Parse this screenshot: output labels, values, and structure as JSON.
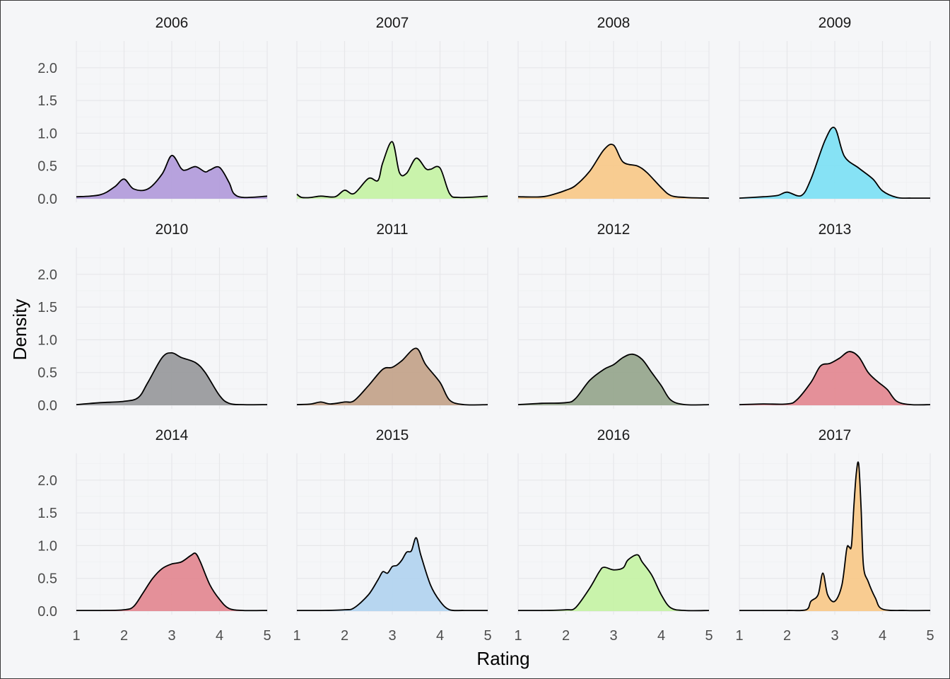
{
  "chart_data": {
    "type": "area",
    "subtype": "density",
    "layout": "facet-grid 3 rows x 4 columns",
    "xlabel": "Rating",
    "ylabel": "Density",
    "xlim": [
      1,
      5
    ],
    "ylim": [
      0,
      2.3
    ],
    "x_ticks": [
      "1",
      "2",
      "3",
      "4",
      "5"
    ],
    "y_ticks": [
      "0.0",
      "0.5",
      "1.0",
      "1.5",
      "2.0"
    ],
    "grid": true,
    "legend": "none",
    "outline_color": "#000000",
    "panels": [
      {
        "title": "2006",
        "color": "#b39ddb",
        "x": [
          1,
          1.5,
          1.8,
          2,
          2.2,
          2.5,
          2.8,
          3,
          3.2,
          3.3,
          3.5,
          3.7,
          3.8,
          4,
          4.2,
          4.3,
          4.5,
          5
        ],
        "y": [
          0.03,
          0.06,
          0.18,
          0.3,
          0.15,
          0.15,
          0.38,
          0.66,
          0.46,
          0.44,
          0.49,
          0.41,
          0.44,
          0.48,
          0.25,
          0.08,
          0.02,
          0.04
        ]
      },
      {
        "title": "2007",
        "color": "#c6f2a6",
        "x": [
          1,
          1.1,
          1.3,
          1.5,
          1.8,
          2,
          2.2,
          2.5,
          2.7,
          2.8,
          3,
          3.15,
          3.3,
          3.5,
          3.7,
          3.8,
          4,
          4.2,
          4.4,
          5
        ],
        "y": [
          0.07,
          0.02,
          0.02,
          0.04,
          0.03,
          0.13,
          0.08,
          0.31,
          0.28,
          0.55,
          0.87,
          0.4,
          0.39,
          0.62,
          0.46,
          0.45,
          0.47,
          0.08,
          0.02,
          0.04
        ]
      },
      {
        "title": "2008",
        "color": "#f8c98b",
        "x": [
          1,
          1.5,
          1.8,
          2,
          2.2,
          2.5,
          2.8,
          3,
          3.2,
          3.5,
          3.7,
          4,
          4.2,
          4.5,
          5
        ],
        "y": [
          0.03,
          0.03,
          0.08,
          0.13,
          0.2,
          0.42,
          0.75,
          0.82,
          0.56,
          0.5,
          0.4,
          0.17,
          0.05,
          0.02,
          0.01
        ]
      },
      {
        "title": "2009",
        "color": "#7fe0f4",
        "x": [
          1,
          1.5,
          1.8,
          2,
          2.3,
          2.5,
          2.8,
          3,
          3.2,
          3.5,
          3.8,
          4,
          4.3,
          4.6,
          5
        ],
        "y": [
          0.01,
          0.03,
          0.05,
          0.1,
          0.05,
          0.3,
          0.9,
          1.08,
          0.65,
          0.47,
          0.3,
          0.12,
          0.02,
          0.01,
          0.01
        ]
      },
      {
        "title": "2010",
        "color": "#9a9b9e",
        "x": [
          1,
          1.5,
          2,
          2.3,
          2.5,
          2.8,
          3,
          3.2,
          3.5,
          3.7,
          4,
          4.2,
          4.5,
          5
        ],
        "y": [
          0.01,
          0.04,
          0.06,
          0.12,
          0.35,
          0.73,
          0.8,
          0.73,
          0.65,
          0.5,
          0.15,
          0.03,
          0.01,
          0.01
        ]
      },
      {
        "title": "2011",
        "color": "#c4a48c",
        "x": [
          1,
          1.3,
          1.5,
          1.7,
          2,
          2.2,
          2.5,
          2.8,
          3,
          3.2,
          3.5,
          3.7,
          4,
          4.2,
          4.5,
          5
        ],
        "y": [
          0.01,
          0.02,
          0.05,
          0.02,
          0.05,
          0.07,
          0.3,
          0.55,
          0.58,
          0.68,
          0.87,
          0.62,
          0.35,
          0.08,
          0.01,
          0.01
        ]
      },
      {
        "title": "2012",
        "color": "#98a88f",
        "x": [
          1,
          1.5,
          2,
          2.2,
          2.5,
          2.8,
          3,
          3.2,
          3.4,
          3.6,
          3.8,
          4,
          4.2,
          4.5,
          5
        ],
        "y": [
          0.01,
          0.03,
          0.04,
          0.1,
          0.38,
          0.55,
          0.62,
          0.73,
          0.78,
          0.7,
          0.5,
          0.3,
          0.08,
          0.01,
          0.01
        ]
      },
      {
        "title": "2013",
        "color": "#e38a94",
        "x": [
          1,
          1.5,
          2,
          2.2,
          2.5,
          2.7,
          2.9,
          3.1,
          3.3,
          3.5,
          3.7,
          3.9,
          4.1,
          4.3,
          4.6,
          5
        ],
        "y": [
          0.01,
          0.02,
          0.02,
          0.08,
          0.35,
          0.6,
          0.64,
          0.72,
          0.82,
          0.74,
          0.5,
          0.36,
          0.24,
          0.06,
          0.01,
          0.01
        ]
      },
      {
        "title": "2014",
        "color": "#e38a94",
        "x": [
          1,
          1.5,
          2,
          2.2,
          2.4,
          2.6,
          2.8,
          3,
          3.2,
          3.4,
          3.5,
          3.6,
          3.8,
          4,
          4.2,
          4.5,
          5
        ],
        "y": [
          0.01,
          0.01,
          0.02,
          0.07,
          0.28,
          0.5,
          0.65,
          0.72,
          0.75,
          0.85,
          0.88,
          0.75,
          0.4,
          0.18,
          0.04,
          0.01,
          0.01
        ]
      },
      {
        "title": "2015",
        "color": "#b3d4ef",
        "x": [
          1,
          1.5,
          2,
          2.2,
          2.5,
          2.7,
          2.8,
          2.9,
          3,
          3.1,
          3.2,
          3.3,
          3.4,
          3.5,
          3.6,
          3.8,
          4,
          4.2,
          4.5,
          5
        ],
        "y": [
          0.01,
          0.01,
          0.02,
          0.05,
          0.25,
          0.48,
          0.6,
          0.58,
          0.68,
          0.7,
          0.78,
          0.9,
          0.92,
          1.12,
          0.85,
          0.4,
          0.15,
          0.02,
          0.01,
          0.01
        ]
      },
      {
        "title": "2016",
        "color": "#c6f2a6",
        "x": [
          1,
          1.5,
          2,
          2.2,
          2.5,
          2.7,
          2.8,
          3,
          3.2,
          3.3,
          3.5,
          3.6,
          3.8,
          4,
          4.2,
          4.5,
          5
        ],
        "y": [
          0.01,
          0.01,
          0.02,
          0.05,
          0.35,
          0.6,
          0.67,
          0.63,
          0.66,
          0.78,
          0.86,
          0.75,
          0.55,
          0.25,
          0.05,
          0.01,
          0.01
        ]
      },
      {
        "title": "2017",
        "color": "#f8c98b",
        "x": [
          1,
          1.5,
          2,
          2.4,
          2.5,
          2.65,
          2.75,
          2.85,
          3,
          3.15,
          3.25,
          3.3,
          3.35,
          3.4,
          3.45,
          3.5,
          3.55,
          3.6,
          3.7,
          3.85,
          4,
          4.5,
          5
        ],
        "y": [
          0.01,
          0.01,
          0.01,
          0.02,
          0.15,
          0.25,
          0.58,
          0.25,
          0.15,
          0.4,
          0.95,
          0.98,
          1.0,
          1.6,
          2.1,
          2.25,
          1.6,
          0.7,
          0.45,
          0.2,
          0.03,
          0.01,
          0.01
        ]
      }
    ]
  }
}
